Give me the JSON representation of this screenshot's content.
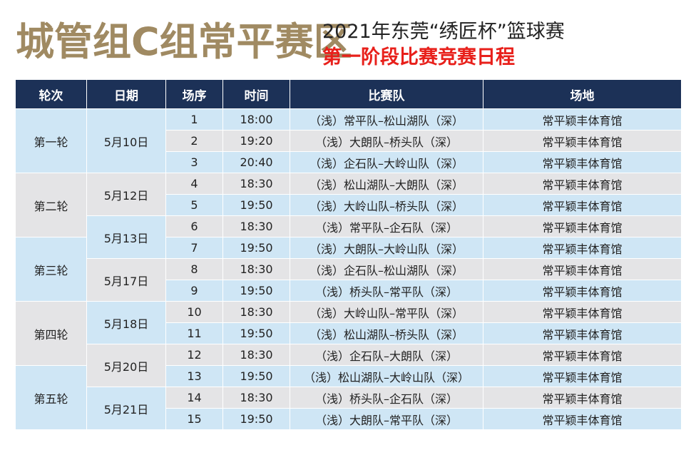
{
  "header": {
    "title": "城管组C组常平赛区",
    "subtitle": "2021年东莞“绣匠杯”篮球赛",
    "stage": "第一阶段比赛竞赛日程"
  },
  "columns": [
    "轮次",
    "日期",
    "场序",
    "时间",
    "比赛队",
    "场地"
  ],
  "rounds": [
    {
      "label": "第一轮",
      "color": "blue"
    },
    {
      "label": "第二轮",
      "color": "gray"
    },
    {
      "label": "第三轮",
      "color": "blue"
    },
    {
      "label": "第四轮",
      "color": "gray"
    },
    {
      "label": "第五轮",
      "color": "blue"
    }
  ],
  "dates": [
    {
      "label": "5月10日",
      "color": "blue"
    },
    {
      "label": "5月12日",
      "color": "gray"
    },
    {
      "label": "5月13日",
      "color": "blue"
    },
    {
      "label": "5月17日",
      "color": "gray"
    },
    {
      "label": "5月18日",
      "color": "blue"
    },
    {
      "label": "5月20日",
      "color": "gray"
    },
    {
      "label": "5月21日",
      "color": "blue"
    }
  ],
  "matches": [
    {
      "no": "1",
      "time": "18:00",
      "teams": "（浅）常平队–松山湖队（深）",
      "venue": "常平颖丰体育馆"
    },
    {
      "no": "2",
      "time": "19:20",
      "teams": "（浅）大朗队–桥头队（深）",
      "venue": "常平颖丰体育馆"
    },
    {
      "no": "3",
      "time": "20:40",
      "teams": "（浅）企石队–大岭山队（深）",
      "venue": "常平颖丰体育馆"
    },
    {
      "no": "4",
      "time": "18:30",
      "teams": "（浅）松山湖队–大朗队（深）",
      "venue": "常平颖丰体育馆"
    },
    {
      "no": "5",
      "time": "19:50",
      "teams": "（浅）大岭山队–桥头队（深）",
      "venue": "常平颖丰体育馆"
    },
    {
      "no": "6",
      "time": "18:30",
      "teams": "（浅）常平队–企石队（深）",
      "venue": "常平颖丰体育馆"
    },
    {
      "no": "7",
      "time": "19:50",
      "teams": "（浅）大朗队–大岭山队（深）",
      "venue": "常平颖丰体育馆"
    },
    {
      "no": "8",
      "time": "18:30",
      "teams": "（浅）企石队–松山湖队（深）",
      "venue": "常平颖丰体育馆"
    },
    {
      "no": "9",
      "time": "19:50",
      "teams": "（浅）桥头队–常平队（深）",
      "venue": "常平颖丰体育馆"
    },
    {
      "no": "10",
      "time": "18:30",
      "teams": "（浅）大岭山队–常平队（深）",
      "venue": "常平颖丰体育馆"
    },
    {
      "no": "11",
      "time": "19:50",
      "teams": "（浅）松山湖队–桥头队（深）",
      "venue": "常平颖丰体育馆"
    },
    {
      "no": "12",
      "time": "18:30",
      "teams": "（浅）企石队–大朗队（深）",
      "venue": "常平颖丰体育馆"
    },
    {
      "no": "13",
      "time": "19:50",
      "teams": "（浅）松山湖队–大岭山队（深）",
      "venue": "常平颖丰体育馆"
    },
    {
      "no": "14",
      "time": "18:30",
      "teams": "（浅）桥头队–企石队（深）",
      "venue": "常平颖丰体育馆"
    },
    {
      "no": "15",
      "time": "19:50",
      "teams": "（浅）大朗队–常平队（深）",
      "venue": "常平颖丰体育馆"
    }
  ]
}
